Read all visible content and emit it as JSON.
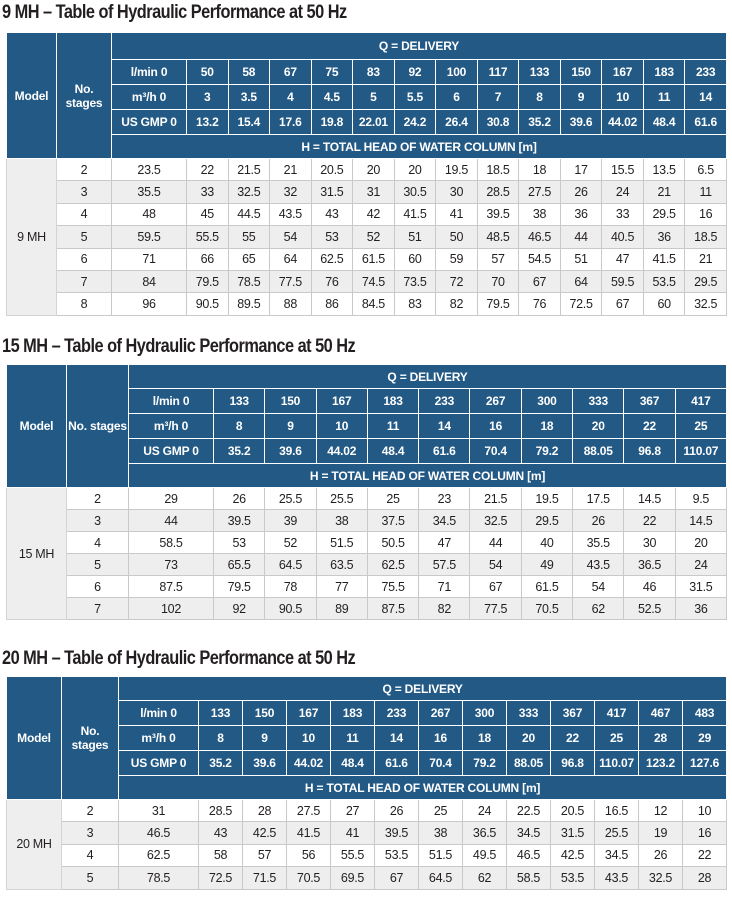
{
  "sections": [
    {
      "title": "9 MH – Table of Hydraulic Performance at 50 Hz",
      "model_header": "Model",
      "stages_header": "No. stages",
      "delivery_header": "Q = DELIVERY",
      "head_header": "H = TOTAL HEAD OF WATER COLUMN [m]",
      "model_name": "9 MH",
      "lmin_label": "l/min 0",
      "m3h_label": "m³/h 0",
      "usgmp_label": "US GMP 0",
      "lmin": [
        "50",
        "58",
        "67",
        "75",
        "83",
        "92",
        "100",
        "117",
        "133",
        "150",
        "167",
        "183",
        "233"
      ],
      "m3h": [
        "3",
        "3.5",
        "4",
        "4.5",
        "5",
        "5.5",
        "6",
        "7",
        "8",
        "9",
        "10",
        "11",
        "14"
      ],
      "usgmp": [
        "13.2",
        "15.4",
        "17.6",
        "19.8",
        "22.01",
        "24.2",
        "26.4",
        "30.8",
        "35.2",
        "39.6",
        "44.02",
        "48.4",
        "61.6"
      ],
      "rows": [
        {
          "stages": "2",
          "values": [
            "23.5",
            "22",
            "21.5",
            "21",
            "20.5",
            "20",
            "20",
            "19.5",
            "18.5",
            "18",
            "17",
            "15.5",
            "13.5",
            "6.5"
          ]
        },
        {
          "stages": "3",
          "values": [
            "35.5",
            "33",
            "32.5",
            "32",
            "31.5",
            "31",
            "30.5",
            "30",
            "28.5",
            "27.5",
            "26",
            "24",
            "21",
            "11"
          ]
        },
        {
          "stages": "4",
          "values": [
            "48",
            "45",
            "44.5",
            "43.5",
            "43",
            "42",
            "41.5",
            "41",
            "39.5",
            "38",
            "36",
            "33",
            "29.5",
            "16"
          ]
        },
        {
          "stages": "5",
          "values": [
            "59.5",
            "55.5",
            "55",
            "54",
            "53",
            "52",
            "51",
            "50",
            "48.5",
            "46.5",
            "44",
            "40.5",
            "36",
            "18.5"
          ]
        },
        {
          "stages": "6",
          "values": [
            "71",
            "66",
            "65",
            "64",
            "62.5",
            "61.5",
            "60",
            "59",
            "57",
            "54.5",
            "51",
            "47",
            "41.5",
            "21"
          ]
        },
        {
          "stages": "7",
          "values": [
            "84",
            "79.5",
            "78.5",
            "77.5",
            "76",
            "74.5",
            "73.5",
            "72",
            "70",
            "67",
            "64",
            "59.5",
            "53.5",
            "29.5"
          ]
        },
        {
          "stages": "8",
          "values": [
            "96",
            "90.5",
            "89.5",
            "88",
            "86",
            "84.5",
            "83",
            "82",
            "79.5",
            "76",
            "72.5",
            "67",
            "60",
            "32.5"
          ]
        }
      ]
    },
    {
      "title": "15 MH – Table of Hydraulic Performance at 50 Hz",
      "model_header": "Model",
      "stages_header": "No. stages",
      "delivery_header": "Q = DELIVERY",
      "head_header": "H = TOTAL HEAD OF WATER COLUMN [m]",
      "model_name": "15 MH",
      "lmin_label": "l/min 0",
      "m3h_label": "m³/h 0",
      "usgmp_label": "US GMP 0",
      "lmin": [
        "133",
        "150",
        "167",
        "183",
        "233",
        "267",
        "300",
        "333",
        "367",
        "417"
      ],
      "m3h": [
        "8",
        "9",
        "10",
        "11",
        "14",
        "16",
        "18",
        "20",
        "22",
        "25"
      ],
      "usgmp": [
        "35.2",
        "39.6",
        "44.02",
        "48.4",
        "61.6",
        "70.4",
        "79.2",
        "88.05",
        "96.8",
        "110.07"
      ],
      "rows": [
        {
          "stages": "2",
          "values": [
            "29",
            "26",
            "25.5",
            "25.5",
            "25",
            "23",
            "21.5",
            "19.5",
            "17.5",
            "14.5",
            "9.5"
          ]
        },
        {
          "stages": "3",
          "values": [
            "44",
            "39.5",
            "39",
            "38",
            "37.5",
            "34.5",
            "32.5",
            "29.5",
            "26",
            "22",
            "14.5"
          ]
        },
        {
          "stages": "4",
          "values": [
            "58.5",
            "53",
            "52",
            "51.5",
            "50.5",
            "47",
            "44",
            "40",
            "35.5",
            "30",
            "20"
          ]
        },
        {
          "stages": "5",
          "values": [
            "73",
            "65.5",
            "64.5",
            "63.5",
            "62.5",
            "57.5",
            "54",
            "49",
            "43.5",
            "36.5",
            "24"
          ]
        },
        {
          "stages": "6",
          "values": [
            "87.5",
            "79.5",
            "78",
            "77",
            "75.5",
            "71",
            "67",
            "61.5",
            "54",
            "46",
            "31.5"
          ]
        },
        {
          "stages": "7",
          "values": [
            "102",
            "92",
            "90.5",
            "89",
            "87.5",
            "82",
            "77.5",
            "70.5",
            "62",
            "52.5",
            "36"
          ]
        }
      ]
    },
    {
      "title": "20 MH – Table of Hydraulic Performance at 50 Hz",
      "model_header": "Model",
      "stages_header": "No. stages",
      "delivery_header": "Q = DELIVERY",
      "head_header": "H = TOTAL HEAD OF WATER COLUMN [m]",
      "model_name": "20 MH",
      "lmin_label": "l/min 0",
      "m3h_label": "m³/h 0",
      "usgmp_label": "US GMP 0",
      "lmin": [
        "133",
        "150",
        "167",
        "183",
        "233",
        "267",
        "300",
        "333",
        "367",
        "417",
        "467",
        "483"
      ],
      "m3h": [
        "8",
        "9",
        "10",
        "11",
        "14",
        "16",
        "18",
        "20",
        "22",
        "25",
        "28",
        "29"
      ],
      "usgmp": [
        "35.2",
        "39.6",
        "44.02",
        "48.4",
        "61.6",
        "70.4",
        "79.2",
        "88.05",
        "96.8",
        "110.07",
        "123.2",
        "127.6"
      ],
      "rows": [
        {
          "stages": "2",
          "values": [
            "31",
            "28.5",
            "28",
            "27.5",
            "27",
            "26",
            "25",
            "24",
            "22.5",
            "20.5",
            "16.5",
            "12",
            "10"
          ]
        },
        {
          "stages": "3",
          "values": [
            "46.5",
            "43",
            "42.5",
            "41.5",
            "41",
            "39.5",
            "38",
            "36.5",
            "34.5",
            "31.5",
            "25.5",
            "19",
            "16"
          ]
        },
        {
          "stages": "4",
          "values": [
            "62.5",
            "58",
            "57",
            "56",
            "55.5",
            "53.5",
            "51.5",
            "49.5",
            "46.5",
            "42.5",
            "34.5",
            "26",
            "22"
          ]
        },
        {
          "stages": "5",
          "values": [
            "78.5",
            "72.5",
            "71.5",
            "70.5",
            "69.5",
            "67",
            "64.5",
            "62",
            "58.5",
            "53.5",
            "43.5",
            "32.5",
            "28"
          ]
        }
      ]
    }
  ]
}
